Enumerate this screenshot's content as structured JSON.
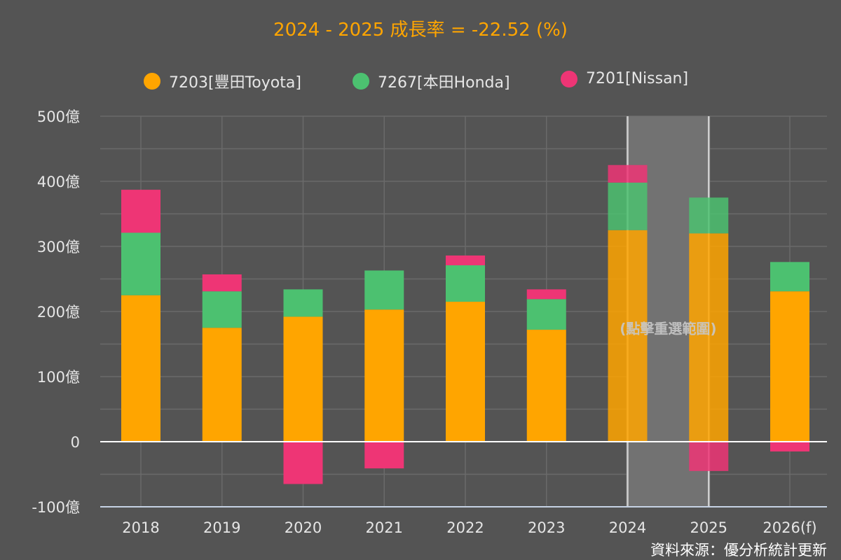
{
  "title": "2024 - 2025 成長率 = -22.52 (%)",
  "source": "資料來源：優分析統計更新",
  "selection": {
    "from": "2024",
    "to": "2025",
    "label": "(點擊重選範圍)"
  },
  "chart_data": {
    "type": "bar",
    "stacked": true,
    "categories": [
      "2018",
      "2019",
      "2020",
      "2021",
      "2022",
      "2023",
      "2024",
      "2025",
      "2026(f)"
    ],
    "series": [
      {
        "name": "7203[豐田Toyota]",
        "color": "#FFA500",
        "values": [
          225,
          175,
          192,
          203,
          215,
          172,
          325,
          320,
          231
        ]
      },
      {
        "name": "7267[本田Honda]",
        "color": "#4CC170",
        "values": [
          96,
          56,
          42,
          60,
          56,
          47,
          73,
          55,
          45
        ]
      },
      {
        "name": "7201[Nissan]",
        "color": "#EE3575",
        "values": [
          66,
          26,
          -65,
          -41,
          15,
          15,
          27,
          -45,
          -15
        ]
      }
    ],
    "y_ticks": [
      "-100億",
      "0",
      "100億",
      "200億",
      "300億",
      "400億",
      "500億"
    ],
    "ylim": [
      -100,
      500
    ],
    "grid": true,
    "legend_position": "top-center"
  }
}
